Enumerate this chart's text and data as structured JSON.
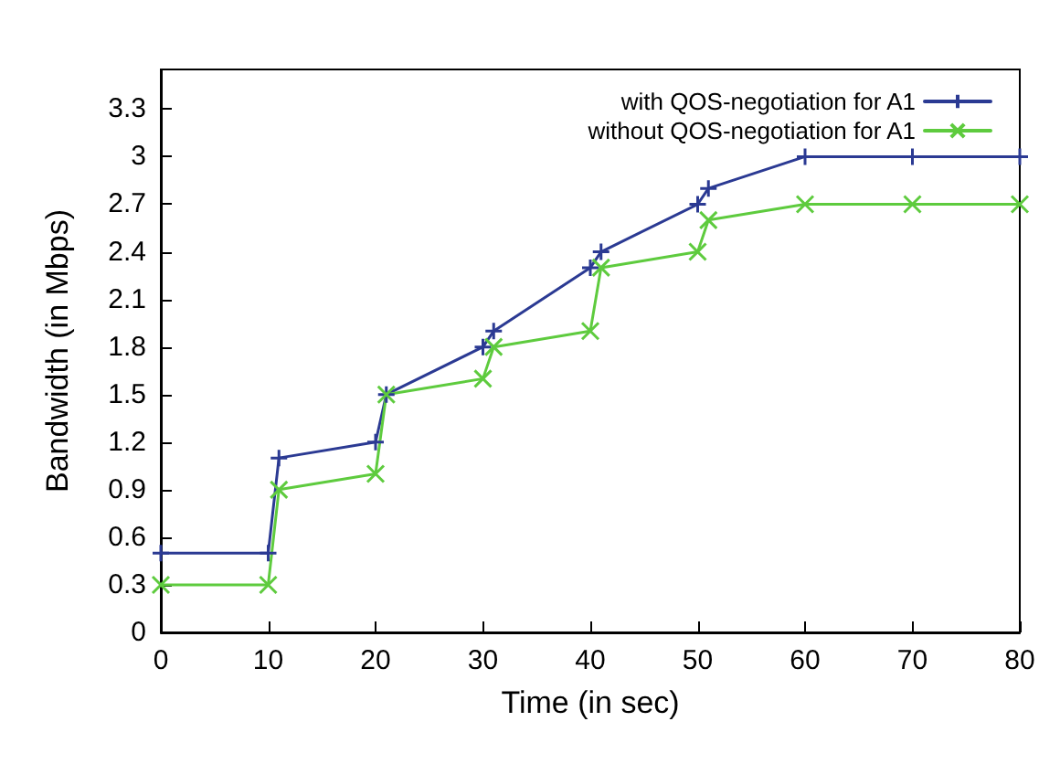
{
  "chart_data": {
    "type": "line",
    "xlabel": "Time (in sec)",
    "ylabel": "Bandwidth (in Mbps)",
    "x": [
      0,
      10,
      11,
      20,
      21,
      30,
      31,
      40,
      41,
      50,
      51,
      60,
      70,
      80
    ],
    "series": [
      {
        "name": "with QOS-negotiation for A1",
        "color": "#2b3a93",
        "marker": "plus",
        "values": [
          0.5,
          0.5,
          1.1,
          1.2,
          1.5,
          1.8,
          1.9,
          2.3,
          2.4,
          2.7,
          2.8,
          3.0,
          3.0,
          3.0
        ]
      },
      {
        "name": "without QOS-negotiation for A1",
        "color": "#5ecb3e",
        "marker": "cross",
        "values": [
          0.3,
          0.3,
          0.9,
          1.0,
          1.5,
          1.6,
          1.8,
          1.9,
          2.3,
          2.4,
          2.6,
          2.7,
          2.7,
          2.7
        ]
      }
    ],
    "xlim": [
      0,
      80
    ],
    "xticks": [
      0,
      10,
      20,
      30,
      40,
      50,
      60,
      70,
      80
    ],
    "ylim": [
      0,
      3.55
    ],
    "yticks": [
      0,
      0.3,
      0.6,
      0.9,
      1.2,
      1.5,
      1.8,
      2.1,
      2.4,
      2.7,
      3,
      3.3
    ],
    "grid": false,
    "legend": "top right",
    "line_style": "solid"
  }
}
